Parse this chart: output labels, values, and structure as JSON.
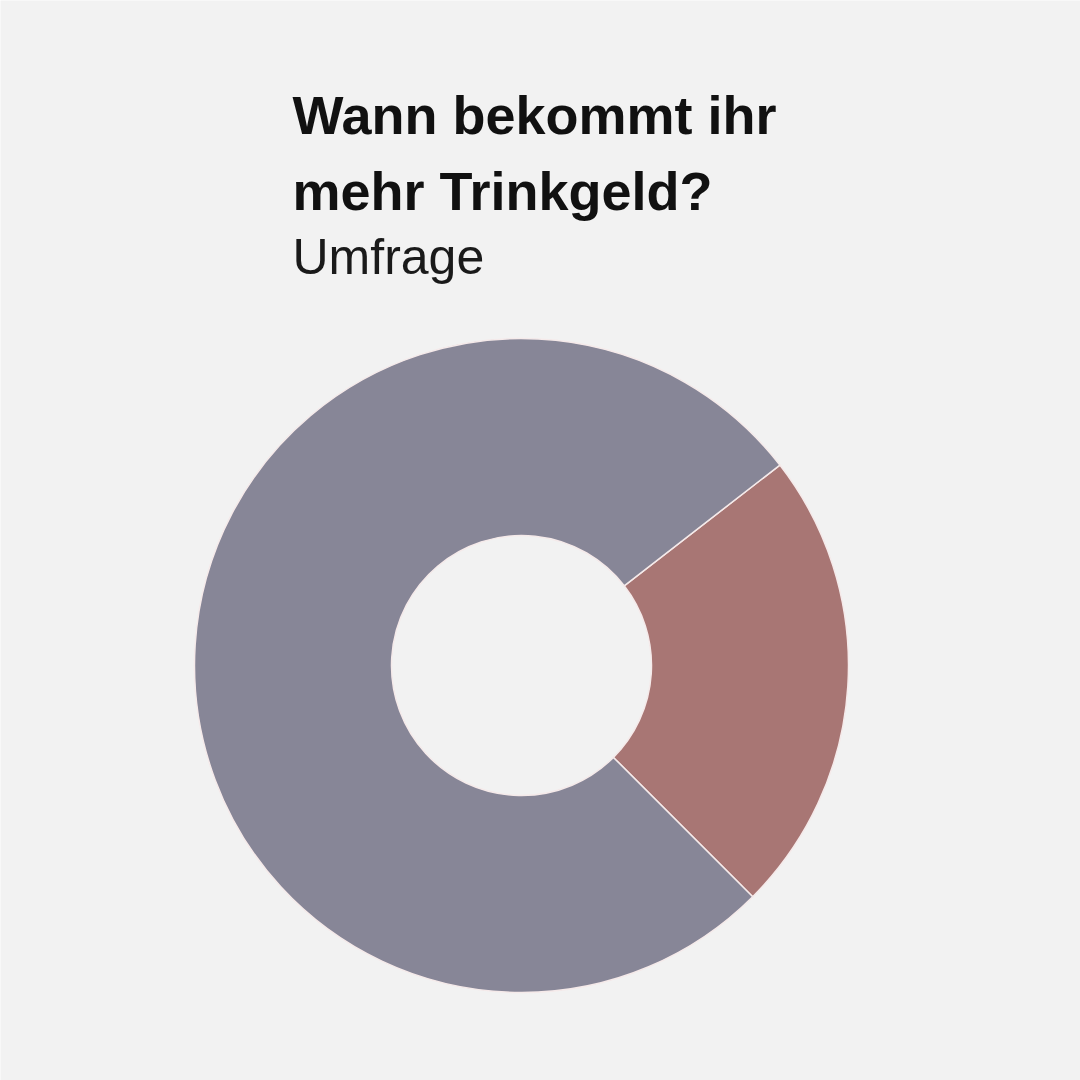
{
  "chart_data": {
    "type": "donut",
    "title": "Wann bekommt ihr mehr Trinkgeld?",
    "subtitle": "Umfrage",
    "categories": [
      null,
      null
    ],
    "values": [
      23,
      77
    ],
    "colors": [
      "#a87674",
      "#878697"
    ]
  }
}
